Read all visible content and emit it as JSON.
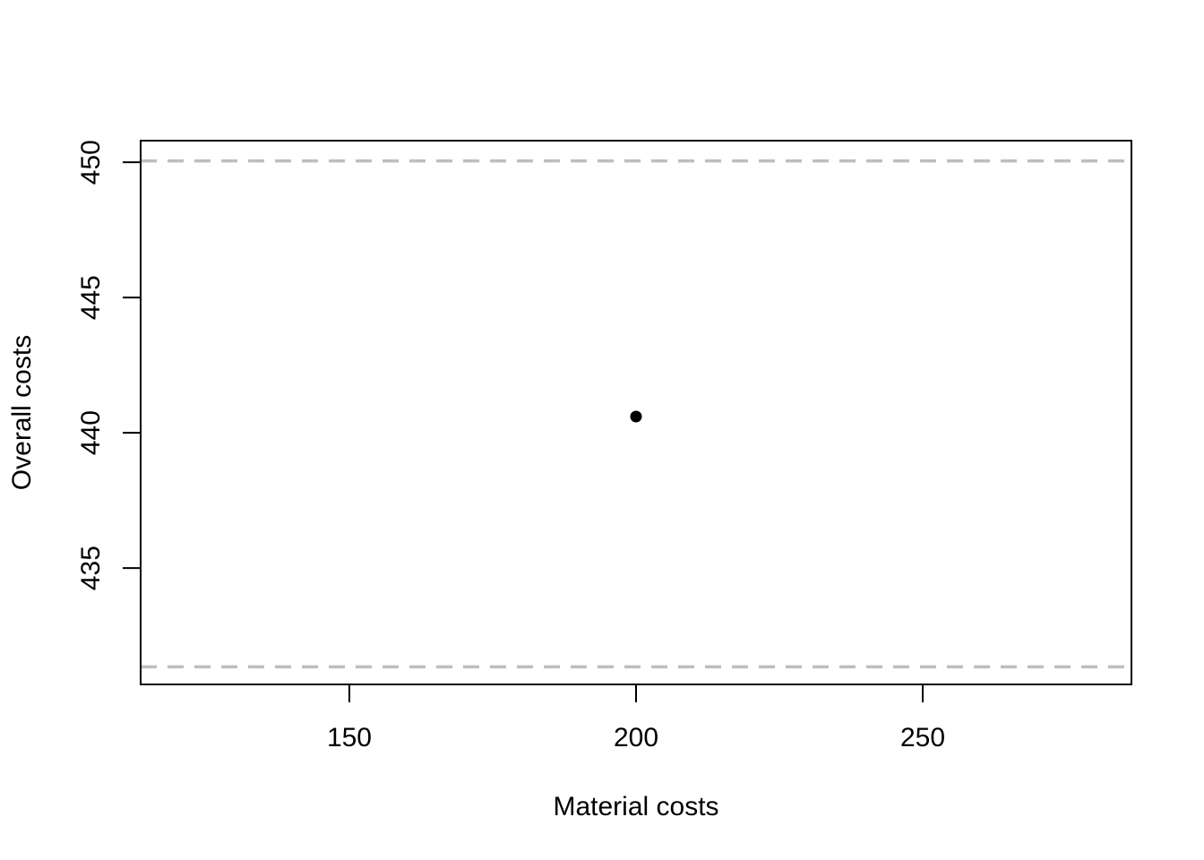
{
  "chart_data": {
    "type": "scatter",
    "title": "",
    "xlabel": "Material costs",
    "ylabel": "Overall costs",
    "xlim": [
      113.6,
      286.4
    ],
    "ylim": [
      430.7,
      450.8
    ],
    "x_ticks": [
      150,
      200,
      250
    ],
    "y_ticks": [
      435,
      440,
      445,
      450
    ],
    "points": [
      {
        "x": 200,
        "y": 440.6
      }
    ],
    "reference_lines": [
      {
        "orientation": "horizontal",
        "y": 450.05,
        "style": "dashed",
        "color": "#bebebe"
      },
      {
        "orientation": "horizontal",
        "y": 431.35,
        "style": "dashed",
        "color": "#bebebe"
      }
    ],
    "grid": false,
    "legend": "none",
    "point_color": "#000000",
    "axis_color": "#000000"
  }
}
